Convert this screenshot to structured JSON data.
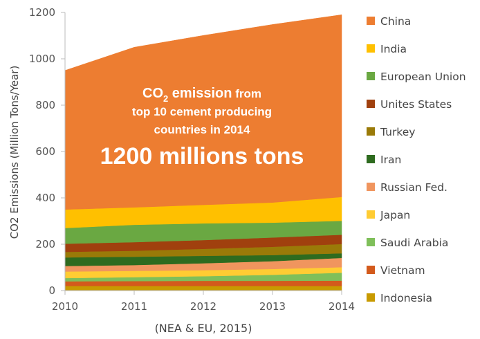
{
  "chart_data": {
    "type": "area",
    "stacked": true,
    "x": [
      2010,
      2011,
      2012,
      2013,
      2014
    ],
    "ylabel": "CO2 Emissions (Million Tons/Year)",
    "xlabel": "(NEA & EU, 2015)",
    "ylim": [
      0,
      1200
    ],
    "yticks": [
      0,
      200,
      400,
      600,
      800,
      1000,
      1200
    ],
    "grid": false,
    "legend_position": "right",
    "series": [
      {
        "name": "Indonesia",
        "color": "#c89a00",
        "values": [
          20,
          20,
          20,
          20,
          20
        ]
      },
      {
        "name": "Vietnam",
        "color": "#d35a1c",
        "values": [
          20,
          21,
          22,
          22,
          23
        ]
      },
      {
        "name": "Saudi Arabia",
        "color": "#7fbf5a",
        "values": [
          14,
          17,
          20,
          26,
          34
        ]
      },
      {
        "name": "Japan",
        "color": "#ffcc33",
        "values": [
          28,
          27,
          26,
          25,
          24
        ]
      },
      {
        "name": "Russian Fed.",
        "color": "#f0955e",
        "values": [
          24,
          25,
          30,
          34,
          40
        ]
      },
      {
        "name": "Iran",
        "color": "#2e6b1f",
        "values": [
          37,
          36,
          32,
          26,
          20
        ]
      },
      {
        "name": "Turkey",
        "color": "#9a7a08",
        "values": [
          24,
          26,
          30,
          36,
          40
        ]
      },
      {
        "name": "Unites States",
        "color": "#a0400e",
        "values": [
          35,
          37,
          38,
          40,
          40
        ]
      },
      {
        "name": "European Union",
        "color": "#6aa842",
        "values": [
          68,
          75,
          72,
          64,
          60
        ]
      },
      {
        "name": "India",
        "color": "#ffc000",
        "values": [
          80,
          75,
          80,
          87,
          103
        ]
      },
      {
        "name": "China",
        "color": "#ed7d31",
        "values": [
          600,
          691,
          731,
          768,
          786
        ]
      }
    ],
    "annotation": {
      "line1_main": "CO",
      "line1_sub": "2",
      "line1_emph": " emission",
      "line1_rest": " from",
      "line2": "top 10 cement producing",
      "line3": "countries in 2014",
      "line4": "1200 millions tons"
    }
  }
}
